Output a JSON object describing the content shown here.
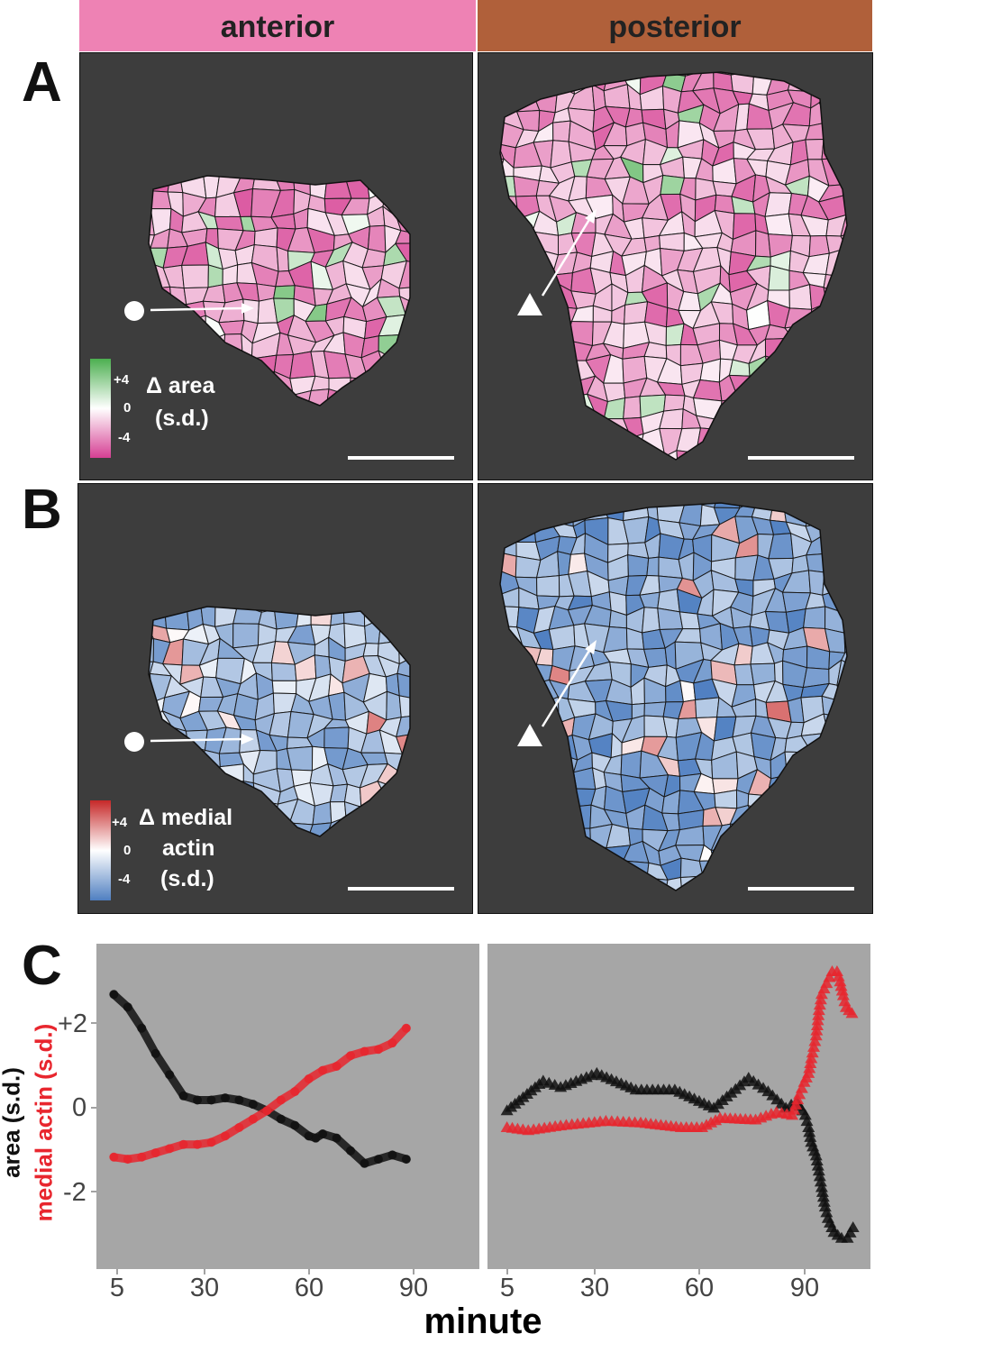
{
  "headers": {
    "anterior": "anterior",
    "posterior": "posterior",
    "anterior_color": "#ee82b4",
    "posterior_color": "#b0603a"
  },
  "panel_labels": {
    "a": "A",
    "b": "B",
    "c": "C"
  },
  "legend_a": {
    "plus": "+4",
    "zero": "0",
    "minus": "-4",
    "title1": "Δ area",
    "title2": "(s.d.)",
    "colors": [
      "#4caf50",
      "#ffffff",
      "#d63f93"
    ]
  },
  "legend_b": {
    "plus": "+4",
    "zero": "0",
    "minus": "-4",
    "title1": "Δ medial",
    "title2": "actin",
    "title3": "(s.d.)",
    "colors": [
      "#c62828",
      "#ffffff",
      "#4f7fc1"
    ]
  },
  "map_background": "#3d3d3d",
  "chart_data": [
    {
      "type": "scatter",
      "panel": "anterior",
      "marker": "circle",
      "xlabel": "minute",
      "ylabel": "area (s.d.) / medial actin (s.d.)",
      "xticks": [
        5,
        30,
        60,
        90
      ],
      "yticks_labels": [
        "+2",
        "0",
        "-2"
      ],
      "yticks": [
        2,
        0,
        -2
      ],
      "xlim": [
        -1,
        109
      ],
      "ylim": [
        -3.8,
        3.9
      ],
      "grid": false,
      "background": "#a6a6a6",
      "series": [
        {
          "name": "area (s.d.)",
          "color": "#111111",
          "x": [
            4,
            8,
            12,
            16,
            20,
            24,
            28,
            32,
            36,
            40,
            44,
            48,
            52,
            56,
            60,
            62,
            64,
            68,
            72,
            76,
            80,
            84,
            88
          ],
          "y": [
            2.7,
            2.4,
            1.9,
            1.3,
            0.8,
            0.3,
            0.2,
            0.2,
            0.25,
            0.2,
            0.1,
            -0.05,
            -0.25,
            -0.4,
            -0.65,
            -0.7,
            -0.6,
            -0.7,
            -1.0,
            -1.3,
            -1.2,
            -1.1,
            -1.2
          ]
        },
        {
          "name": "medial actin (s.d.)",
          "color": "#e8262e",
          "x": [
            4,
            8,
            12,
            16,
            20,
            24,
            28,
            32,
            36,
            40,
            44,
            48,
            52,
            56,
            60,
            64,
            68,
            72,
            76,
            80,
            84,
            88
          ],
          "y": [
            -1.15,
            -1.2,
            -1.15,
            -1.05,
            -0.95,
            -0.85,
            -0.85,
            -0.8,
            -0.65,
            -0.45,
            -0.25,
            -0.05,
            0.2,
            0.4,
            0.7,
            0.9,
            1.0,
            1.25,
            1.35,
            1.4,
            1.55,
            1.9
          ]
        }
      ]
    },
    {
      "type": "scatter",
      "panel": "posterior",
      "marker": "triangle",
      "xticks": [
        5,
        30,
        60,
        90
      ],
      "xlim": [
        -1,
        109
      ],
      "ylim": [
        -3.8,
        3.9
      ],
      "grid": false,
      "background": "#a6a6a6",
      "series": [
        {
          "name": "area (s.d.)",
          "color": "#111111",
          "x": [
            4.6,
            15,
            20,
            30.4,
            41.6,
            52.8,
            64,
            74,
            79.6,
            84.7,
            87.8,
            90.3,
            91.2,
            92,
            93.4,
            94.2,
            95,
            96,
            96.8,
            98.5,
            100.7,
            102.4,
            104
          ],
          "y": [
            -0.05,
            0.65,
            0.5,
            0.83,
            0.44,
            0.44,
            0.01,
            0.72,
            0.4,
            0.01,
            0.16,
            -0.16,
            -0.45,
            -0.8,
            -1.12,
            -1.48,
            -1.87,
            -2.33,
            -2.6,
            -2.93,
            -3.07,
            -3.07,
            -2.82
          ]
        },
        {
          "name": "medial actin (s.d.)",
          "color": "#e8262e",
          "x": [
            4.6,
            10.7,
            20,
            33,
            43,
            54.6,
            60.6,
            65.8,
            76,
            82,
            86.5,
            88.6,
            90,
            91.2,
            92,
            93.4,
            94.2,
            95,
            96.4,
            98,
            99.4,
            100.3,
            101.2,
            102,
            103.7
          ],
          "y": [
            -0.45,
            -0.52,
            -0.41,
            -0.3,
            -0.34,
            -0.45,
            -0.45,
            -0.23,
            -0.27,
            -0.09,
            -0.16,
            0.33,
            0.62,
            0.83,
            1.18,
            1.72,
            2.32,
            2.7,
            2.96,
            3.24,
            3.24,
            3.0,
            2.67,
            2.39,
            2.25
          ]
        }
      ]
    }
  ],
  "axis": {
    "xtitle": "minute",
    "ytitle_area": "area (s.d.)",
    "ytitle_actin": "medial actin (s.d.)",
    "xtick_labels": [
      "5",
      "30",
      "60",
      "90"
    ],
    "ytick_labels": [
      "+2",
      "0",
      "-2"
    ]
  }
}
